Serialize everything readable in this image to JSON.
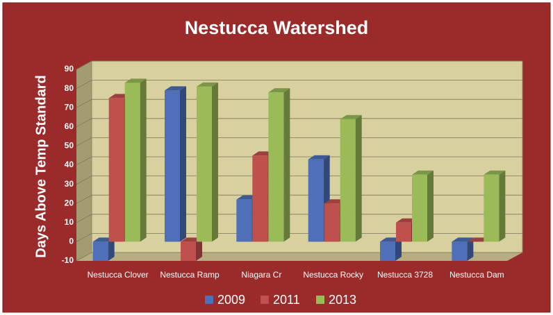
{
  "chart_data": {
    "type": "bar",
    "title": "Nestucca Watershed",
    "y_label": "Days Above Temp Standard",
    "categories": [
      "Nestucca Clover",
      "Nestucca Ramp",
      "Niagara Cr",
      "Nestucca Rocky",
      "Nestucca 3728",
      "Nestucca Dam"
    ],
    "series": [
      {
        "name": "2009",
        "color": "#4f6fb9",
        "values": [
          -10,
          79,
          22,
          43,
          -10,
          -10
        ]
      },
      {
        "name": "2011",
        "color": "#c0504d",
        "values": [
          75,
          -10,
          45,
          20,
          10,
          0
        ]
      },
      {
        "name": "2013",
        "color": "#9bbb59",
        "values": [
          83,
          81,
          78,
          64,
          35,
          35
        ]
      }
    ],
    "ylim": [
      -10,
      90
    ],
    "yticks": [
      -10,
      0,
      10,
      20,
      30,
      40,
      50,
      60,
      70,
      80,
      90
    ],
    "grid": true
  }
}
